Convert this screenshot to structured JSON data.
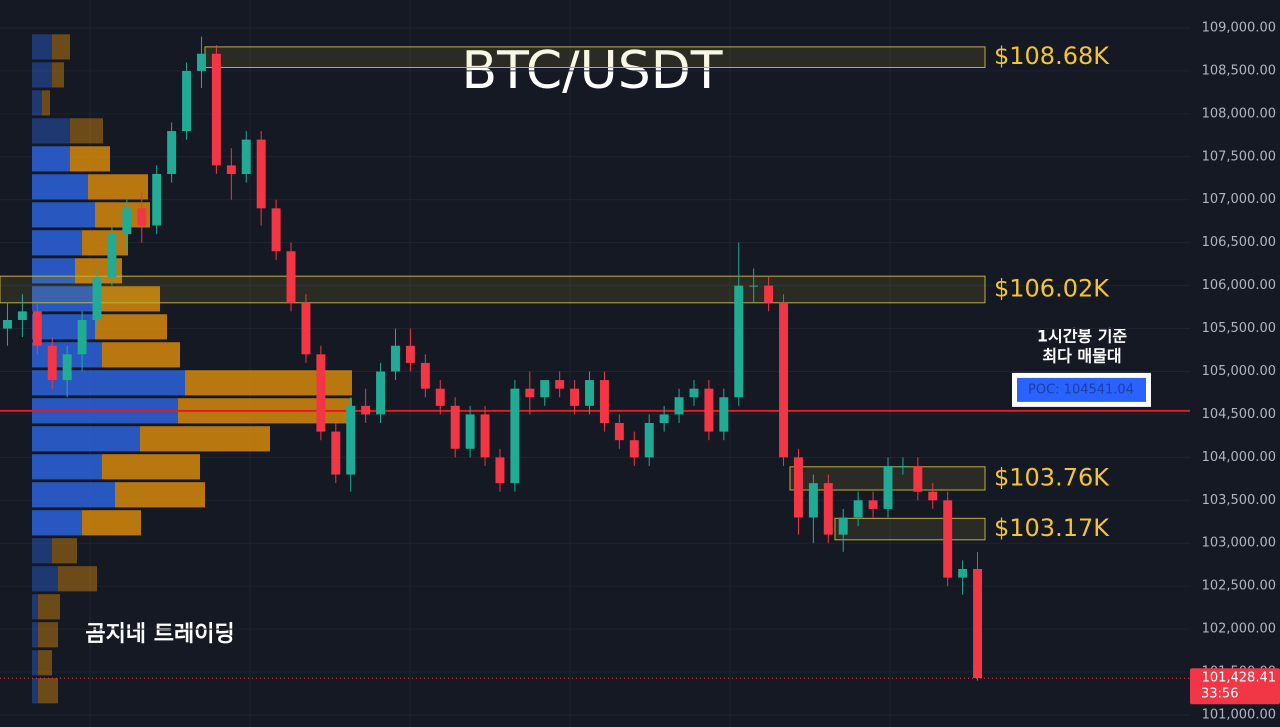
{
  "chart_data": {
    "type": "candlestick",
    "title": "BTC/USDT",
    "watermark": "곰지네 트레이딩",
    "note_lines": [
      "1시간봉 기준",
      "최다 매물대"
    ],
    "up_color": "#22ab94",
    "down_color": "#f23645",
    "ylim": [
      100860,
      109326
    ],
    "yticks": [
      {
        "value": 101000,
        "label": "101,000.00"
      },
      {
        "value": 101500,
        "label": "101,500.00"
      },
      {
        "value": 102000,
        "label": "102,000.00"
      },
      {
        "value": 102500,
        "label": "102,500.00"
      },
      {
        "value": 103000,
        "label": "103,000.00"
      },
      {
        "value": 103500,
        "label": "103,500.00"
      },
      {
        "value": 104000,
        "label": "104,000.00"
      },
      {
        "value": 104500,
        "label": "104,500.00"
      },
      {
        "value": 105000,
        "label": "105,000.00"
      },
      {
        "value": 105500,
        "label": "105,500.00"
      },
      {
        "value": 106000,
        "label": "106,000.00"
      },
      {
        "value": 106500,
        "label": "106,500.00"
      },
      {
        "value": 107000,
        "label": "107,000.00"
      },
      {
        "value": 107500,
        "label": "107,500.00"
      },
      {
        "value": 108000,
        "label": "108,000.00"
      },
      {
        "value": 108500,
        "label": "108,500.00"
      },
      {
        "value": 109000,
        "label": "109,000.00"
      }
    ],
    "open": [
      105500,
      105600,
      105700,
      105300,
      104900,
      105200,
      105600,
      106100,
      106600,
      106900,
      106700,
      107300,
      107800,
      108500,
      108700,
      107400,
      107300,
      107700,
      106900,
      106400,
      105800,
      105200,
      104300,
      103800,
      104600,
      104500,
      105000,
      105300,
      105100,
      104800,
      104600,
      104100,
      104500,
      104000,
      103700,
      104800,
      104700,
      104900,
      104800,
      104600,
      104900,
      104400,
      104200,
      104000,
      104400,
      104500,
      104700,
      104800,
      104300,
      104700,
      106000,
      106000,
      105800,
      104000,
      103300,
      103700,
      103100,
      103300,
      103500,
      103400,
      103900,
      103900,
      103600,
      103500,
      102600,
      102700
    ],
    "high": [
      105800,
      105900,
      105800,
      105400,
      105300,
      105700,
      106200,
      106700,
      107000,
      107100,
      107400,
      107900,
      108600,
      108900,
      108800,
      107600,
      107800,
      107800,
      107000,
      106500,
      105900,
      105300,
      104400,
      104700,
      104800,
      105100,
      105500,
      105500,
      105200,
      104900,
      104700,
      104600,
      104600,
      104100,
      104900,
      105000,
      104900,
      105000,
      104900,
      105000,
      105000,
      104500,
      104300,
      104500,
      104600,
      104800,
      104900,
      104900,
      104800,
      106500,
      106200,
      106100,
      105900,
      104100,
      103800,
      103800,
      103400,
      103600,
      103600,
      104000,
      104000,
      104000,
      103700,
      103600,
      102800,
      102900
    ],
    "low": [
      105300,
      105400,
      105200,
      104800,
      104700,
      105000,
      105500,
      106000,
      106400,
      106500,
      106600,
      107200,
      107700,
      108300,
      107300,
      107000,
      107200,
      106700,
      106300,
      105700,
      105100,
      104200,
      103700,
      103600,
      104400,
      104400,
      104900,
      105000,
      104700,
      104500,
      104000,
      104000,
      103900,
      103600,
      103600,
      104500,
      104600,
      104700,
      104500,
      104500,
      104300,
      104100,
      103900,
      103900,
      104300,
      104400,
      104600,
      104200,
      104200,
      104600,
      105800,
      105700,
      103900,
      103100,
      103000,
      103000,
      102900,
      103200,
      103300,
      103300,
      103800,
      103500,
      103400,
      102500,
      102400,
      101400
    ],
    "close": [
      105600,
      105700,
      105300,
      104900,
      105200,
      105600,
      106100,
      106600,
      106900,
      106700,
      107300,
      107800,
      108500,
      108700,
      107400,
      107300,
      107700,
      106900,
      106400,
      105800,
      105200,
      104300,
      103800,
      104600,
      104500,
      105000,
      105300,
      105100,
      104800,
      104600,
      104100,
      104500,
      104000,
      103700,
      104800,
      104700,
      104900,
      104800,
      104600,
      104900,
      104400,
      104200,
      104000,
      104400,
      104500,
      104700,
      104800,
      104300,
      104700,
      106000,
      106000,
      105800,
      104000,
      103300,
      103700,
      103100,
      103300,
      103500,
      103400,
      103900,
      103900,
      103600,
      103500,
      102600,
      102700,
      101430
    ],
    "volume_profile": {
      "levels": [
        108780,
        108454,
        108128,
        107802,
        107476,
        107150,
        106824,
        106498,
        106172,
        105846,
        105520,
        105194,
        104868,
        104542,
        104216,
        103890,
        103564,
        103238,
        102912,
        102586,
        102260,
        101934,
        101608,
        101282
      ],
      "buy": [
        20,
        20,
        10,
        38,
        38,
        56,
        63,
        50,
        43,
        63,
        63,
        70,
        153,
        146,
        108,
        70,
        83,
        50,
        20,
        26,
        6,
        6,
        6,
        6
      ],
      "sell": [
        18,
        12,
        8,
        33,
        40,
        60,
        55,
        46,
        47,
        65,
        72,
        78,
        167,
        174,
        130,
        98,
        90,
        59,
        25,
        39,
        22,
        20,
        14,
        20
      ],
      "buy_color": "#2a5fd0",
      "sell_color": "#d68a0c"
    },
    "levels": [
      {
        "label": "$108.68K",
        "low": 108540,
        "high": 108780
      },
      {
        "label": "$106.02K",
        "low": 105800,
        "high": 106110
      },
      {
        "label": "$103.76K",
        "low": 103620,
        "high": 103890
      },
      {
        "label": "$103.17K",
        "low": 103040,
        "high": 103290
      }
    ],
    "poc": {
      "label": "POC: 104541.04",
      "value": 104541.04
    },
    "last_price": {
      "value": 101428.41,
      "label": "101,428.41",
      "countdown": "33:56"
    }
  }
}
